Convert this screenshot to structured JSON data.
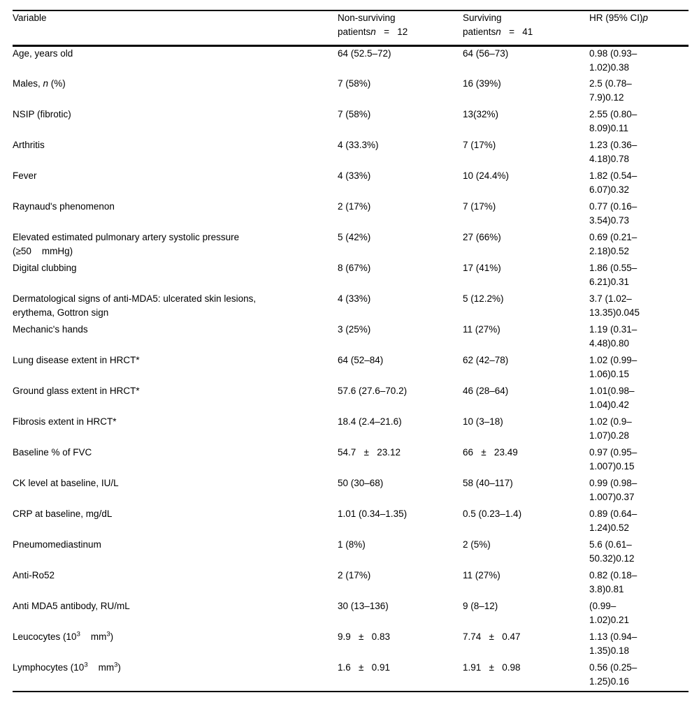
{
  "table": {
    "header": {
      "cells": [
        {
          "segments": [
            {
              "t": "Variable"
            }
          ]
        },
        {
          "segments": [
            {
              "t": "Non-surviving"
            },
            {
              "br": true
            },
            {
              "t": "patients"
            },
            {
              "t": "n",
              "i": true
            },
            {
              "t": "   =   12"
            }
          ]
        },
        {
          "segments": [
            {
              "t": "Surviving"
            },
            {
              "br": true
            },
            {
              "t": "patients"
            },
            {
              "t": "n",
              "i": true
            },
            {
              "t": "   =   41"
            }
          ]
        },
        {
          "segments": [
            {
              "t": "HR (95% CI)"
            },
            {
              "t": "p",
              "i": true
            }
          ]
        }
      ]
    },
    "rows": [
      {
        "variable": [
          {
            "t": "Age, years old"
          }
        ],
        "col2": "64 (52.5–72)",
        "col3": "64 (56–73)",
        "hr_lines": [
          "0.98 (0.93–",
          "1.02)0.38"
        ]
      },
      {
        "variable": [
          {
            "t": "Males, "
          },
          {
            "t": "n",
            "i": true
          },
          {
            "t": " (%)"
          }
        ],
        "col2": "7 (58%)",
        "col3": "16 (39%)",
        "hr_lines": [
          "2.5 (0.78–",
          "7.9)0.12"
        ]
      },
      {
        "variable": [
          {
            "t": "NSIP (fibrotic)"
          }
        ],
        "col2": "7 (58%)",
        "col3": "13(32%)",
        "hr_lines": [
          "2.55 (0.80–",
          "8.09)0.11"
        ]
      },
      {
        "variable": [
          {
            "t": "Arthritis"
          }
        ],
        "col2": "4 (33.3%)",
        "col3": "7 (17%)",
        "hr_lines": [
          "1.23 (0.36–",
          "4.18)0.78"
        ]
      },
      {
        "variable": [
          {
            "t": "Fever"
          }
        ],
        "col2": "4 (33%)",
        "col3": "10 (24.4%)",
        "hr_lines": [
          "1.82 (0.54–",
          "6.07)0.32"
        ]
      },
      {
        "variable": [
          {
            "t": "Raynaud's phenomenon"
          }
        ],
        "col2": "2 (17%)",
        "col3": "7 (17%)",
        "hr_lines": [
          "0.77 (0.16–",
          "3.54)0.73"
        ]
      },
      {
        "variable": [
          {
            "t": "Elevated estimated pulmonary artery systolic pressure"
          },
          {
            "br": true
          },
          {
            "t": "(≥50    mmHg)"
          }
        ],
        "col2": "5 (42%)",
        "col3": "27 (66%)",
        "hr_lines": [
          "0.69 (0.21–",
          "2.18)0.52"
        ]
      },
      {
        "variable": [
          {
            "t": "Digital clubbing"
          }
        ],
        "col2": "8 (67%)",
        "col3": "17 (41%)",
        "hr_lines": [
          "1.86 (0.55–",
          "6.21)0.31"
        ]
      },
      {
        "variable": [
          {
            "t": "Dermatological signs of anti-MDA5: ulcerated skin lesions,"
          },
          {
            "br": true
          },
          {
            "t": "erythema, Gottron sign"
          }
        ],
        "col2": "4 (33%)",
        "col3": "5 (12.2%)",
        "hr_lines": [
          "3.7 (1.02–",
          "13.35)0.045"
        ]
      },
      {
        "variable": [
          {
            "t": "Mechanic's hands"
          }
        ],
        "col2": "3 (25%)",
        "col3": "11 (27%)",
        "hr_lines": [
          "1.19 (0.31–",
          "4.48)0.80"
        ]
      },
      {
        "variable": [
          {
            "t": "Lung disease extent in HRCT*"
          }
        ],
        "col2": "64 (52–84)",
        "col3": "62 (42–78)",
        "hr_lines": [
          "1.02 (0.99–",
          "1.06)0.15"
        ]
      },
      {
        "variable": [
          {
            "t": "Ground glass extent in HRCT*"
          }
        ],
        "col2": "57.6 (27.6–70.2)",
        "col3": "46 (28–64)",
        "hr_lines": [
          "1.01(0.98–",
          "1.04)0.42"
        ]
      },
      {
        "variable": [
          {
            "t": "Fibrosis extent in HRCT*"
          }
        ],
        "col2": "18.4 (2.4–21.6)",
        "col3": "10 (3–18)",
        "hr_lines": [
          "1.02 (0.9–",
          "1.07)0.28"
        ]
      },
      {
        "variable": [
          {
            "t": "Baseline % of FVC"
          }
        ],
        "col2": "54.7   ±   23.12",
        "col3": "66   ±   23.49",
        "hr_lines": [
          "0.97 (0.95–",
          "1.007)0.15"
        ]
      },
      {
        "variable": [
          {
            "t": "CK level at baseline, IU/L"
          }
        ],
        "col2": "50 (30–68)",
        "col3": "58 (40–117)",
        "hr_lines": [
          "0.99 (0.98–",
          "1.007)0.37"
        ]
      },
      {
        "variable": [
          {
            "t": "CRP at baseline, mg/dL"
          }
        ],
        "col2": "1.01 (0.34–1.35)",
        "col3": "0.5 (0.23–1.4)",
        "hr_lines": [
          "0.89 (0.64–",
          "1.24)0.52"
        ]
      },
      {
        "variable": [
          {
            "t": "Pneumomediastinum"
          }
        ],
        "col2": "1 (8%)",
        "col3": "2 (5%)",
        "hr_lines": [
          "5.6 (0.61–",
          "50.32)0.12"
        ]
      },
      {
        "variable": [
          {
            "t": "Anti-Ro52"
          }
        ],
        "col2": "2 (17%)",
        "col3": "11 (27%)",
        "hr_lines": [
          "0.82 (0.18–",
          "3.8)0.81"
        ]
      },
      {
        "variable": [
          {
            "t": "Anti MDA5 antibody, RU/mL"
          }
        ],
        "col2": "30 (13–136)",
        "col3": "9 (8–12)",
        "hr_lines": [
          "(0.99–",
          "1.02)0.21"
        ]
      },
      {
        "variable": [
          {
            "t": "Leucocytes (10"
          },
          {
            "t": "3",
            "sup": true
          },
          {
            "t": "    mm"
          },
          {
            "t": "3",
            "sup": true
          },
          {
            "t": ")"
          }
        ],
        "col2": "9.9   ±   0.83",
        "col3": "7.74   ±   0.47",
        "hr_lines": [
          "1.13 (0.94–",
          "1.35)0.18"
        ]
      },
      {
        "variable": [
          {
            "t": "Lymphocytes (10"
          },
          {
            "t": "3",
            "sup": true
          },
          {
            "t": "    mm"
          },
          {
            "t": "3",
            "sup": true
          },
          {
            "t": ")"
          }
        ],
        "col2": "1.6   ±   0.91",
        "col3": "1.91   ±   0.98",
        "hr_lines": [
          "0.56 (0.25–",
          "1.25)0.16"
        ]
      }
    ]
  }
}
